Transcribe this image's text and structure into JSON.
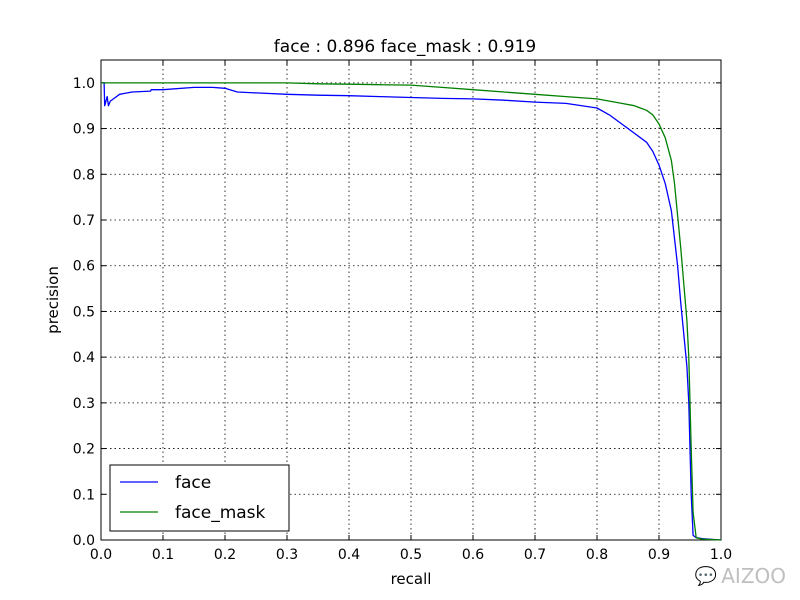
{
  "chart_data": {
    "type": "line",
    "title": "face : 0.896  face_mask : 0.919",
    "xlabel": "recall",
    "ylabel": "precision",
    "xlim": [
      0.0,
      1.0
    ],
    "ylim": [
      0.0,
      1.05
    ],
    "xticks": [
      "0.0",
      "0.1",
      "0.2",
      "0.3",
      "0.4",
      "0.5",
      "0.6",
      "0.7",
      "0.8",
      "0.9",
      "1.0"
    ],
    "yticks": [
      "0.0",
      "0.1",
      "0.2",
      "0.3",
      "0.4",
      "0.5",
      "0.6",
      "0.7",
      "0.8",
      "0.9",
      "1.0"
    ],
    "grid": true,
    "legend_position": "lower-left",
    "series": [
      {
        "name": "face",
        "color": "#0000ff",
        "x": [
          0.0,
          0.005,
          0.006,
          0.01,
          0.012,
          0.015,
          0.02,
          0.03,
          0.05,
          0.08,
          0.081,
          0.1,
          0.15,
          0.18,
          0.2,
          0.22,
          0.25,
          0.3,
          0.35,
          0.4,
          0.45,
          0.5,
          0.55,
          0.6,
          0.65,
          0.7,
          0.75,
          0.8,
          0.82,
          0.84,
          0.86,
          0.88,
          0.89,
          0.9,
          0.91,
          0.92,
          0.925,
          0.93,
          0.935,
          0.94,
          0.945,
          0.948,
          0.95,
          0.952,
          0.955,
          0.96,
          0.97,
          0.98,
          1.0
        ],
        "y": [
          1.0,
          1.0,
          0.95,
          0.97,
          0.95,
          0.96,
          0.965,
          0.975,
          0.98,
          0.982,
          0.985,
          0.985,
          0.99,
          0.99,
          0.988,
          0.98,
          0.978,
          0.975,
          0.973,
          0.972,
          0.97,
          0.968,
          0.966,
          0.965,
          0.962,
          0.958,
          0.955,
          0.945,
          0.93,
          0.91,
          0.89,
          0.87,
          0.85,
          0.82,
          0.78,
          0.72,
          0.66,
          0.6,
          0.52,
          0.45,
          0.38,
          0.3,
          0.2,
          0.1,
          0.01,
          0.005,
          0.003,
          0.002,
          0.0
        ]
      },
      {
        "name": "face_mask",
        "color": "#008000",
        "x": [
          0.0,
          0.05,
          0.1,
          0.2,
          0.3,
          0.35,
          0.4,
          0.45,
          0.5,
          0.55,
          0.6,
          0.65,
          0.7,
          0.75,
          0.8,
          0.82,
          0.84,
          0.86,
          0.88,
          0.89,
          0.9,
          0.91,
          0.92,
          0.925,
          0.93,
          0.935,
          0.94,
          0.945,
          0.948,
          0.95,
          0.952,
          0.955,
          0.96,
          0.97,
          1.0
        ],
        "y": [
          1.0,
          1.0,
          1.0,
          1.0,
          1.0,
          0.998,
          0.997,
          0.996,
          0.995,
          0.99,
          0.985,
          0.98,
          0.975,
          0.97,
          0.965,
          0.96,
          0.955,
          0.95,
          0.94,
          0.93,
          0.91,
          0.88,
          0.83,
          0.78,
          0.71,
          0.64,
          0.56,
          0.48,
          0.4,
          0.3,
          0.2,
          0.06,
          0.005,
          0.002,
          0.0
        ]
      }
    ]
  },
  "watermark": {
    "icon": "wechat-icon",
    "text": "AIZOO"
  }
}
